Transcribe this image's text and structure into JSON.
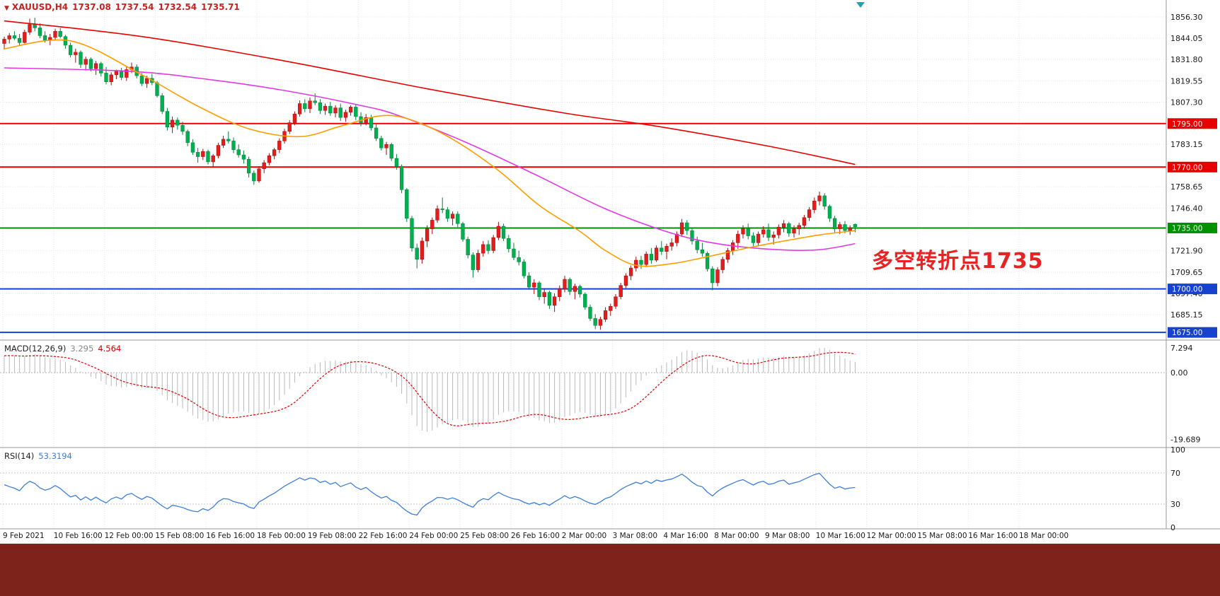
{
  "header": {
    "symbol": "XAUUSD,H4",
    "open": "1737.08",
    "high": "1737.54",
    "low": "1732.54",
    "close": "1735.71",
    "tri_color": "#c52222"
  },
  "annotation": {
    "text": "多空转折点1735",
    "color": "#e62424"
  },
  "shift_marker": {
    "color": "#21a2aa"
  },
  "price_axis": {
    "ticks": [
      "1856.30",
      "1844.05",
      "1831.80",
      "1819.55",
      "1807.30",
      "1783.15",
      "1758.65",
      "1746.40",
      "1721.90",
      "1709.65",
      "1697.40",
      "1685.15"
    ]
  },
  "time_axis": {
    "labels": [
      "9 Feb 2021",
      "10 Feb 16:00",
      "12 Feb 00:00",
      "15 Feb 08:00",
      "16 Feb 16:00",
      "18 Feb 00:00",
      "19 Feb 08:00",
      "22 Feb 16:00",
      "24 Feb 00:00",
      "25 Feb 08:00",
      "26 Feb 16:00",
      "2 Mar 00:00",
      "3 Mar 08:00",
      "4 Mar 16:00",
      "8 Mar 00:00",
      "9 Mar 08:00",
      "10 Mar 16:00",
      "12 Mar 00:00",
      "15 Mar 08:00",
      "16 Mar 16:00",
      "18 Mar 00:00"
    ]
  },
  "macd_panel": {
    "title": "MACD(12,26,9)",
    "main_value": "3.295",
    "signal_value": "4.564"
  },
  "rsi_panel": {
    "title": "RSI(14)",
    "value": "53.3194"
  },
  "chart_data": {
    "type": "candlestick",
    "symbol": "XAUUSD",
    "timeframe": "H4",
    "ylim": [
      1671,
      1866
    ],
    "colors": {
      "up": "#e31c1c",
      "down": "#00b050",
      "up_edge": "#9e0f0f",
      "down_edge": "#00803a",
      "macd_hist": "#b8b8b8",
      "macd_signal": "#e00000",
      "rsi": "#3d7edb",
      "grid": "#e6e6e6",
      "sep": "#9a9a9a"
    },
    "hlines": [
      {
        "label": "1795.00",
        "price": 1795,
        "color": "#e60000"
      },
      {
        "label": "1770.00",
        "price": 1770,
        "color": "#e60000"
      },
      {
        "label": "1735.00",
        "price": 1735,
        "color": "#009100"
      },
      {
        "label": "1700.00",
        "price": 1700,
        "color": "#1742cc"
      },
      {
        "label": "1675.00",
        "price": 1675,
        "color": "#1742cc"
      }
    ],
    "moving_averages": [
      {
        "name": "ma-slow-red",
        "color": "#e60000",
        "anchors": [
          [
            0,
            1854
          ],
          [
            27,
            1845
          ],
          [
            55,
            1831
          ],
          [
            83,
            1815
          ],
          [
            110,
            1801
          ],
          [
            128,
            1793.5
          ],
          [
            150,
            1782
          ],
          [
            167,
            1771.5
          ]
        ]
      },
      {
        "name": "ma-mid-magenta",
        "color": "#e23ae2",
        "anchors": [
          [
            0,
            1827
          ],
          [
            25,
            1825
          ],
          [
            41,
            1820
          ],
          [
            55,
            1814
          ],
          [
            69,
            1806
          ],
          [
            77,
            1800
          ],
          [
            90,
            1785
          ],
          [
            104,
            1766
          ],
          [
            118,
            1746
          ],
          [
            131,
            1732
          ],
          [
            141,
            1725.5
          ],
          [
            152,
            1722.5
          ],
          [
            160,
            1722.5
          ],
          [
            167,
            1726
          ]
        ]
      },
      {
        "name": "ma-fast-orange",
        "color": "#ff9d00",
        "anchors": [
          [
            0,
            1838
          ],
          [
            13,
            1842.5
          ],
          [
            27,
            1823
          ],
          [
            38,
            1805
          ],
          [
            48,
            1792
          ],
          [
            58,
            1787.5
          ],
          [
            66,
            1793.5
          ],
          [
            74,
            1799.5
          ],
          [
            80,
            1797
          ],
          [
            88,
            1786
          ],
          [
            97,
            1768
          ],
          [
            105,
            1748
          ],
          [
            113,
            1733
          ],
          [
            118,
            1722
          ],
          [
            124,
            1713.5
          ],
          [
            131,
            1714.5
          ],
          [
            138,
            1718.5
          ],
          [
            145,
            1723
          ],
          [
            152,
            1727
          ],
          [
            160,
            1731
          ],
          [
            167,
            1733.5
          ]
        ]
      }
    ],
    "indicators": {
      "macd": {
        "params": "12,26,9",
        "last_main": 3.295,
        "last_signal": 4.564,
        "ylim": [
          -21.5,
          9
        ],
        "axis_ticks": [
          "7.294",
          "0.00",
          "-19.689"
        ],
        "ema_seed": [
          1839,
          1834
        ]
      },
      "rsi": {
        "period": 14,
        "last": 53.3194,
        "axis_ticks": [
          "100",
          "70",
          "30",
          "0"
        ],
        "levels": [
          70,
          30
        ]
      }
    },
    "ohlc": [
      [
        1841,
        1845,
        1837.5,
        1843.5
      ],
      [
        1843.5,
        1847,
        1841,
        1845.5
      ],
      [
        1845.5,
        1848,
        1843,
        1844
      ],
      [
        1844,
        1846.5,
        1840,
        1841.5
      ],
      [
        1841.5,
        1849,
        1841,
        1847.5
      ],
      [
        1847.5,
        1855.3,
        1846,
        1852
      ],
      [
        1852,
        1855.8,
        1848,
        1850
      ],
      [
        1850,
        1852.5,
        1844,
        1845.5
      ],
      [
        1845.5,
        1848,
        1841.5,
        1843
      ],
      [
        1843,
        1846.5,
        1840,
        1844.5
      ],
      [
        1844.5,
        1849.5,
        1843,
        1848
      ],
      [
        1848,
        1850,
        1844,
        1845
      ],
      [
        1845,
        1846,
        1838,
        1840
      ],
      [
        1840,
        1841.5,
        1833,
        1834.5
      ],
      [
        1834.5,
        1838,
        1830,
        1836
      ],
      [
        1836,
        1837,
        1827,
        1829
      ],
      [
        1829,
        1833.5,
        1825.5,
        1832
      ],
      [
        1832,
        1833,
        1825,
        1826.5
      ],
      [
        1826.5,
        1831,
        1823,
        1829.5
      ],
      [
        1829.5,
        1830.5,
        1822,
        1824
      ],
      [
        1824,
        1827.5,
        1817.5,
        1819
      ],
      [
        1819,
        1824.5,
        1817,
        1823
      ],
      [
        1823,
        1826,
        1820.5,
        1825
      ],
      [
        1825,
        1827,
        1820,
        1821.5
      ],
      [
        1821.5,
        1828,
        1819.5,
        1826
      ],
      [
        1826,
        1830,
        1824,
        1827.5
      ],
      [
        1827.5,
        1829,
        1821,
        1822.5
      ],
      [
        1822.5,
        1824,
        1816.5,
        1818
      ],
      [
        1818,
        1822.5,
        1815.5,
        1821
      ],
      [
        1821,
        1823.5,
        1817,
        1818.5
      ],
      [
        1818.5,
        1819.5,
        1810,
        1811
      ],
      [
        1811,
        1812.5,
        1800.5,
        1802
      ],
      [
        1802,
        1804,
        1791,
        1793
      ],
      [
        1793,
        1799,
        1789.5,
        1797
      ],
      [
        1797,
        1798.5,
        1791.5,
        1794
      ],
      [
        1794,
        1796,
        1788.5,
        1790.5
      ],
      [
        1790.5,
        1791.5,
        1782,
        1784
      ],
      [
        1784,
        1786,
        1777,
        1778.5
      ],
      [
        1778.5,
        1781,
        1772.5,
        1776
      ],
      [
        1776,
        1780.5,
        1774,
        1779
      ],
      [
        1779,
        1780,
        1771.5,
        1773
      ],
      [
        1773,
        1777.5,
        1770,
        1776.5
      ],
      [
        1776.5,
        1784,
        1775,
        1782.5
      ],
      [
        1782.5,
        1788,
        1781,
        1786
      ],
      [
        1786,
        1790.5,
        1783.5,
        1785
      ],
      [
        1785,
        1787,
        1778,
        1780
      ],
      [
        1780,
        1783,
        1775.5,
        1777
      ],
      [
        1777,
        1779.5,
        1772,
        1774.5
      ],
      [
        1774.5,
        1776,
        1764,
        1766.5
      ],
      [
        1766.5,
        1768,
        1759.8,
        1762
      ],
      [
        1762,
        1770.5,
        1761,
        1769
      ],
      [
        1769,
        1774,
        1766.5,
        1772.5
      ],
      [
        1772.5,
        1778,
        1771,
        1776.5
      ],
      [
        1776.5,
        1781,
        1774.5,
        1780
      ],
      [
        1780,
        1786.5,
        1778,
        1785
      ],
      [
        1785,
        1792,
        1783.5,
        1790.5
      ],
      [
        1790.5,
        1797,
        1789,
        1795.5
      ],
      [
        1795.5,
        1802,
        1794,
        1800.5
      ],
      [
        1800.5,
        1808.3,
        1799,
        1806.5
      ],
      [
        1806.5,
        1809,
        1801.5,
        1803.5
      ],
      [
        1803.5,
        1810,
        1801,
        1808
      ],
      [
        1808,
        1812.4,
        1805.5,
        1807
      ],
      [
        1807,
        1809,
        1800.5,
        1802.5
      ],
      [
        1802.5,
        1806.5,
        1800,
        1805
      ],
      [
        1805,
        1807.5,
        1799.5,
        1801
      ],
      [
        1801,
        1805.5,
        1798.5,
        1804
      ],
      [
        1804,
        1806.5,
        1796.5,
        1798.5
      ],
      [
        1798.5,
        1803,
        1796,
        1801.5
      ],
      [
        1801.5,
        1805.5,
        1799.5,
        1804.5
      ],
      [
        1804.5,
        1806,
        1797,
        1799
      ],
      [
        1799,
        1801.5,
        1793.5,
        1795.5
      ],
      [
        1795.5,
        1800.5,
        1794,
        1798.5
      ],
      [
        1798.5,
        1800,
        1791,
        1792.5
      ],
      [
        1792.5,
        1794.5,
        1785,
        1786.5
      ],
      [
        1786.5,
        1788,
        1779.5,
        1781
      ],
      [
        1781,
        1784.5,
        1777,
        1783
      ],
      [
        1783,
        1784,
        1773.5,
        1775
      ],
      [
        1775,
        1777.5,
        1768.5,
        1770.5
      ],
      [
        1770.5,
        1771.5,
        1755,
        1757
      ],
      [
        1757,
        1758,
        1738.5,
        1740.5
      ],
      [
        1740.5,
        1742,
        1721.5,
        1723.5
      ],
      [
        1723.5,
        1726,
        1711.8,
        1717
      ],
      [
        1717,
        1729.5,
        1714.5,
        1727.5
      ],
      [
        1727.5,
        1736.5,
        1724,
        1734.5
      ],
      [
        1734.5,
        1741,
        1731.5,
        1739.5
      ],
      [
        1739.5,
        1748,
        1738,
        1746
      ],
      [
        1746,
        1752.5,
        1743.5,
        1745.5
      ],
      [
        1745.5,
        1747,
        1738.5,
        1740.5
      ],
      [
        1740.5,
        1744.5,
        1736.5,
        1743
      ],
      [
        1743,
        1744.5,
        1735.5,
        1737.5
      ],
      [
        1737.5,
        1738.5,
        1727,
        1728.5
      ],
      [
        1728.5,
        1730,
        1717.5,
        1719.5
      ],
      [
        1719.5,
        1721,
        1706.5,
        1711
      ],
      [
        1711,
        1722.5,
        1709.5,
        1720.5
      ],
      [
        1720.5,
        1727.5,
        1718.5,
        1725.5
      ],
      [
        1725.5,
        1728,
        1720,
        1722
      ],
      [
        1722,
        1731,
        1720.5,
        1729.5
      ],
      [
        1729.5,
        1738.5,
        1728,
        1736
      ],
      [
        1736,
        1737.5,
        1727.5,
        1729
      ],
      [
        1729,
        1731,
        1721,
        1723
      ],
      [
        1723,
        1726.5,
        1716.5,
        1718
      ],
      [
        1718,
        1722,
        1713.5,
        1715.5
      ],
      [
        1715.5,
        1717,
        1706,
        1707.5
      ],
      [
        1707.5,
        1709.5,
        1699.5,
        1701
      ],
      [
        1701,
        1705.5,
        1697,
        1703.5
      ],
      [
        1703.5,
        1704.5,
        1693.5,
        1695.5
      ],
      [
        1695.5,
        1700,
        1691.5,
        1698
      ],
      [
        1698,
        1699,
        1688.5,
        1690.5
      ],
      [
        1690.5,
        1697.5,
        1686.8,
        1695.5
      ],
      [
        1695.5,
        1702,
        1693,
        1700
      ],
      [
        1700,
        1707.5,
        1698,
        1705.5
      ],
      [
        1705.5,
        1706.5,
        1696.5,
        1698.5
      ],
      [
        1698.5,
        1703,
        1694,
        1701.5
      ],
      [
        1701.5,
        1702.5,
        1695,
        1697
      ],
      [
        1697,
        1698,
        1688,
        1689.5
      ],
      [
        1689.5,
        1691,
        1681.5,
        1683
      ],
      [
        1683,
        1685.5,
        1676.9,
        1679
      ],
      [
        1679,
        1684,
        1676.5,
        1682.5
      ],
      [
        1682.5,
        1689.5,
        1681,
        1687.5
      ],
      [
        1687.5,
        1691.5,
        1684.5,
        1690
      ],
      [
        1690,
        1697,
        1688.5,
        1695.5
      ],
      [
        1695.5,
        1703.5,
        1694,
        1702
      ],
      [
        1702,
        1709,
        1700.5,
        1707.5
      ],
      [
        1707.5,
        1713.5,
        1705,
        1712
      ],
      [
        1712,
        1718.5,
        1710,
        1716.5
      ],
      [
        1716.5,
        1719,
        1711.5,
        1714
      ],
      [
        1714,
        1721.5,
        1712.5,
        1720
      ],
      [
        1720,
        1723.5,
        1714.5,
        1716.5
      ],
      [
        1716.5,
        1725,
        1715.5,
        1723.5
      ],
      [
        1723.5,
        1727.5,
        1719.5,
        1721.5
      ],
      [
        1721.5,
        1726,
        1717,
        1724.5
      ],
      [
        1724.5,
        1729,
        1722,
        1726.5
      ],
      [
        1726.5,
        1733,
        1724.5,
        1731.5
      ],
      [
        1731.5,
        1740.2,
        1730,
        1738
      ],
      [
        1738,
        1739.5,
        1731,
        1733.5
      ],
      [
        1733.5,
        1735,
        1725.5,
        1727.5
      ],
      [
        1727.5,
        1730,
        1720.5,
        1722.5
      ],
      [
        1722.5,
        1726.5,
        1718.5,
        1720.5
      ],
      [
        1720.5,
        1721.5,
        1710,
        1711.5
      ],
      [
        1711.5,
        1713,
        1699.2,
        1703.5
      ],
      [
        1703.5,
        1712.5,
        1701.5,
        1711
      ],
      [
        1711,
        1718.5,
        1709,
        1717
      ],
      [
        1717,
        1723.5,
        1715,
        1722
      ],
      [
        1722,
        1728,
        1719.5,
        1726.5
      ],
      [
        1726.5,
        1733.5,
        1723,
        1731.5
      ],
      [
        1731.5,
        1736.5,
        1729,
        1734.5
      ],
      [
        1734.5,
        1737.5,
        1728.5,
        1730.5
      ],
      [
        1730.5,
        1732.5,
        1724.5,
        1726.5
      ],
      [
        1726.5,
        1733,
        1725,
        1731.5
      ],
      [
        1731.5,
        1736,
        1729.5,
        1734
      ],
      [
        1734,
        1737.5,
        1727.5,
        1729.5
      ],
      [
        1729.5,
        1733,
        1725.5,
        1731
      ],
      [
        1731,
        1737,
        1729,
        1735.5
      ],
      [
        1735.5,
        1739.5,
        1732.5,
        1737.5
      ],
      [
        1737.5,
        1738.5,
        1730,
        1732
      ],
      [
        1732,
        1736.5,
        1729.5,
        1734.5
      ],
      [
        1734.5,
        1738,
        1731,
        1736.5
      ],
      [
        1736.5,
        1742.5,
        1734.5,
        1741
      ],
      [
        1741,
        1747,
        1739,
        1745.5
      ],
      [
        1745.5,
        1752.5,
        1743.5,
        1750.5
      ],
      [
        1750.5,
        1755.9,
        1748,
        1753.5
      ],
      [
        1753.5,
        1755,
        1745.5,
        1747.5
      ],
      [
        1747.5,
        1748.5,
        1738.5,
        1740.5
      ],
      [
        1740.5,
        1742,
        1732.5,
        1734.5
      ],
      [
        1734.5,
        1738.5,
        1731.5,
        1737
      ],
      [
        1737,
        1739,
        1732,
        1733.5
      ],
      [
        1733.5,
        1736.5,
        1731,
        1735
      ],
      [
        1737.08,
        1737.54,
        1732.54,
        1735.71
      ]
    ]
  }
}
